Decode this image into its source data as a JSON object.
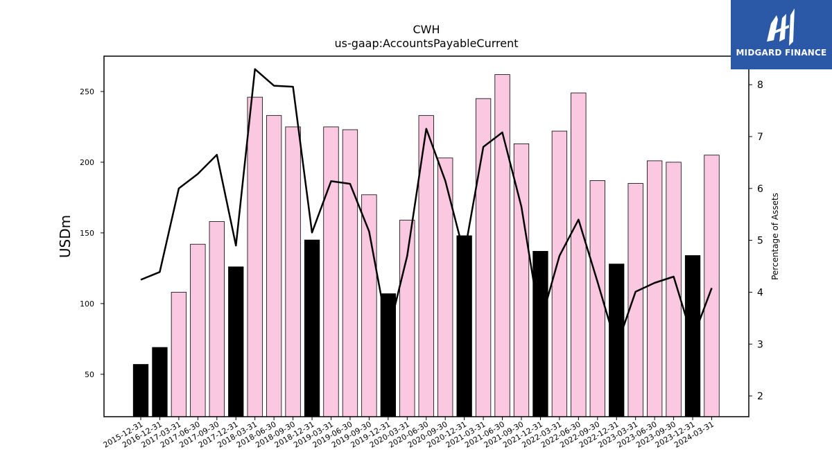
{
  "brand": {
    "name": "MIDGARD FINANCE",
    "color": "#2b59a8"
  },
  "chart_data": {
    "type": "bar",
    "title": "CWH",
    "subtitle": "us-gaap:AccountsPayableCurrent",
    "ylabel": "USDm",
    "y2label": "Percentage of Assets",
    "ylim": [
      20,
      275
    ],
    "y2lim": [
      1.6,
      8.55
    ],
    "yticks": [
      50,
      100,
      150,
      200,
      250
    ],
    "y2ticks": [
      2,
      3,
      4,
      5,
      6,
      7,
      8
    ],
    "categories": [
      "2015-12-31",
      "2016-12-31",
      "2017-03-31",
      "2017-06-30",
      "2017-09-30",
      "2017-12-31",
      "2018-03-31",
      "2018-06-30",
      "2018-09-30",
      "2018-12-31",
      "2019-03-31",
      "2019-06-30",
      "2019-09-30",
      "2019-12-31",
      "2020-03-31",
      "2020-06-30",
      "2020-09-30",
      "2020-12-31",
      "2021-03-31",
      "2021-06-30",
      "2021-09-30",
      "2021-12-31",
      "2022-03-31",
      "2022-06-30",
      "2022-09-30",
      "2022-12-31",
      "2023-03-31",
      "2023-06-30",
      "2023-09-30",
      "2023-12-31",
      "2024-03-31"
    ],
    "series": [
      {
        "kind": "bar",
        "values": [
          57,
          69,
          108,
          142,
          158,
          126,
          246,
          233,
          225,
          145,
          225,
          223,
          177,
          107,
          159,
          233,
          203,
          148,
          245,
          262,
          213,
          137,
          222,
          249,
          187,
          128,
          185,
          201,
          200,
          134,
          205
        ],
        "annual_color": "#000000",
        "quarter_color": "#fbc8e2",
        "annual_flags": [
          1,
          1,
          0,
          0,
          0,
          1,
          0,
          0,
          0,
          1,
          0,
          0,
          0,
          1,
          0,
          0,
          0,
          1,
          0,
          0,
          0,
          1,
          0,
          0,
          0,
          1,
          0,
          0,
          0,
          1,
          0
        ]
      },
      {
        "kind": "line",
        "axis": "right",
        "color": "#000000",
        "values": [
          4.24,
          4.39,
          6.0,
          6.28,
          6.65,
          4.9,
          8.3,
          7.98,
          7.96,
          5.15,
          6.14,
          6.09,
          5.17,
          3.2,
          4.7,
          7.15,
          6.15,
          4.73,
          6.8,
          7.08,
          5.65,
          3.4,
          4.7,
          5.4,
          4.2,
          2.95,
          4.01,
          4.18,
          4.3,
          3.1,
          4.08
        ]
      }
    ],
    "grid": false
  }
}
